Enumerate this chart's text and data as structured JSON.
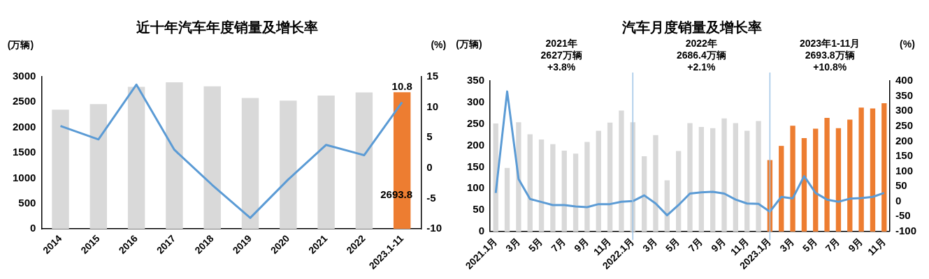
{
  "chart_data": [
    {
      "type": "bar",
      "title": "近十年汽车年度销量及增长率",
      "ylabel": "(万辆)",
      "y2label": "(%)",
      "categories": [
        "2014",
        "2015",
        "2016",
        "2017",
        "2018",
        "2019",
        "2020",
        "2021",
        "2022",
        "2023.1-11"
      ],
      "series": [
        {
          "colors": [
            "#d9d9d9",
            "#d9d9d9",
            "#d9d9d9",
            "#d9d9d9",
            "#d9d9d9",
            "#d9d9d9",
            "#d9d9d9",
            "#d9d9d9",
            "#d9d9d9",
            "#ed7d31"
          ],
          "values": [
            2350,
            2460,
            2800,
            2890,
            2810,
            2580,
            2530,
            2630,
            2690,
            2693.8
          ],
          "value_labels": [
            null,
            null,
            null,
            null,
            null,
            null,
            null,
            null,
            null,
            "2693.8"
          ]
        },
        {
          "type": "line",
          "axis": "y2",
          "color": "#5b9bd5",
          "values": [
            6.9,
            4.7,
            13.7,
            3.0,
            -2.8,
            -8.2,
            -1.9,
            3.8,
            2.1,
            10.8
          ],
          "value_labels": [
            null,
            null,
            null,
            null,
            null,
            null,
            null,
            null,
            null,
            "10.8"
          ]
        }
      ],
      "ylim": [
        0,
        3000
      ],
      "yticks": [
        0,
        500,
        1000,
        1500,
        2000,
        2500,
        3000
      ],
      "y2lim": [
        -10,
        15
      ],
      "y2ticks": [
        -10,
        -5,
        0,
        5,
        10,
        15
      ],
      "legend": false
    },
    {
      "type": "bar",
      "title": "汽车月度销量及增长率",
      "ylabel": "(万辆)",
      "y2label": "(%)",
      "categories": [
        "2021.1月",
        null,
        "3月",
        null,
        "5月",
        null,
        "7月",
        null,
        "9月",
        null,
        "11月",
        null,
        "2022.1月",
        null,
        "3月",
        null,
        "5月",
        null,
        "7月",
        null,
        "9月",
        null,
        "11月",
        null,
        "2023.1月",
        null,
        "3月",
        null,
        "5月",
        null,
        "7月",
        null,
        "9月",
        null,
        "11月"
      ],
      "series": [
        {
          "colors": [
            "#d9d9d9",
            "#d9d9d9",
            "#d9d9d9",
            "#d9d9d9",
            "#d9d9d9",
            "#d9d9d9",
            "#d9d9d9",
            "#d9d9d9",
            "#d9d9d9",
            "#d9d9d9",
            "#d9d9d9",
            "#d9d9d9",
            "#d9d9d9",
            "#d9d9d9",
            "#d9d9d9",
            "#d9d9d9",
            "#d9d9d9",
            "#d9d9d9",
            "#d9d9d9",
            "#d9d9d9",
            "#d9d9d9",
            "#d9d9d9",
            "#d9d9d9",
            "#d9d9d9",
            "#ed7d31",
            "#ed7d31",
            "#ed7d31",
            "#ed7d31",
            "#ed7d31",
            "#ed7d31",
            "#ed7d31",
            "#ed7d31",
            "#ed7d31",
            "#ed7d31",
            "#ed7d31"
          ],
          "values": [
            251,
            148,
            254,
            226,
            214,
            203,
            188,
            181,
            208,
            234,
            253,
            281,
            254,
            175,
            224,
            119,
            187,
            252,
            243,
            240,
            263,
            252,
            234,
            257,
            166,
            199,
            246,
            217,
            239,
            264,
            240,
            260,
            288,
            286,
            298
          ]
        },
        {
          "type": "line",
          "axis": "y2",
          "color": "#5b9bd5",
          "values": [
            28,
            365,
            74,
            8,
            -2,
            -12,
            -12,
            -17,
            -19,
            -9,
            -9,
            -1,
            1,
            20,
            -7,
            -46,
            -12,
            26,
            30,
            32,
            26,
            6,
            -7,
            -8,
            -34,
            15,
            10,
            84,
            28,
            6,
            -1,
            9,
            11,
            15,
            28
          ]
        }
      ],
      "ylim": [
        0,
        350
      ],
      "yticks": [
        0,
        50,
        100,
        150,
        200,
        250,
        300,
        350
      ],
      "y2lim": [
        -100,
        400
      ],
      "y2ticks": [
        -100,
        -50,
        0,
        50,
        100,
        150,
        200,
        250,
        300,
        350,
        400
      ],
      "legend": false,
      "ref_lines": [
        {
          "axis": "x",
          "value": "2022.1月",
          "color": "#9dc3e6"
        },
        {
          "axis": "x",
          "value": "2023.1月",
          "color": "#9dc3e6"
        }
      ],
      "annotations": [
        "2021年\n2627万辆\n+3.8%",
        "2022年\n2686.4万辆\n+2.1%",
        "2023年1-11月\n2693.8万辆\n+10.8%"
      ]
    }
  ]
}
